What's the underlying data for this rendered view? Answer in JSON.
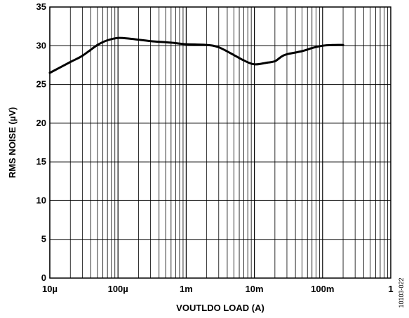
{
  "chart_data": {
    "type": "line",
    "xlabel": "VOUTLDO LOAD (A)",
    "ylabel": "RMS NOISE (µV)",
    "x_scale": "log",
    "xlim": [
      1e-05,
      1
    ],
    "ylim": [
      0,
      35
    ],
    "grid": true,
    "x_ticks": [
      {
        "value": 1e-05,
        "label": "10µ"
      },
      {
        "value": 0.0001,
        "label": "100µ"
      },
      {
        "value": 0.001,
        "label": "1m"
      },
      {
        "value": 0.01,
        "label": "10m"
      },
      {
        "value": 0.1,
        "label": "100m"
      },
      {
        "value": 1,
        "label": "1"
      }
    ],
    "y_ticks": [
      {
        "value": 0,
        "label": "0"
      },
      {
        "value": 5,
        "label": "5"
      },
      {
        "value": 10,
        "label": "10"
      },
      {
        "value": 15,
        "label": "15"
      },
      {
        "value": 20,
        "label": "20"
      },
      {
        "value": 25,
        "label": "25"
      },
      {
        "value": 30,
        "label": "30"
      },
      {
        "value": 35,
        "label": "35"
      }
    ],
    "series": [
      {
        "color": "#000000",
        "x": [
          1e-05,
          2e-05,
          3e-05,
          5e-05,
          7e-05,
          0.0001,
          0.00015,
          0.0003,
          0.0006,
          0.001,
          0.002,
          0.003,
          0.005,
          0.007,
          0.01,
          0.015,
          0.02,
          0.025,
          0.03,
          0.05,
          0.07,
          0.1,
          0.15,
          0.2
        ],
        "y": [
          26.5,
          27.9,
          28.7,
          30.1,
          30.7,
          31.0,
          30.9,
          30.6,
          30.4,
          30.2,
          30.1,
          29.8,
          28.8,
          28.1,
          27.6,
          27.8,
          28.0,
          28.6,
          28.9,
          29.3,
          29.7,
          30.0,
          30.1,
          30.1
        ]
      }
    ]
  },
  "figure_id": "10103-022"
}
